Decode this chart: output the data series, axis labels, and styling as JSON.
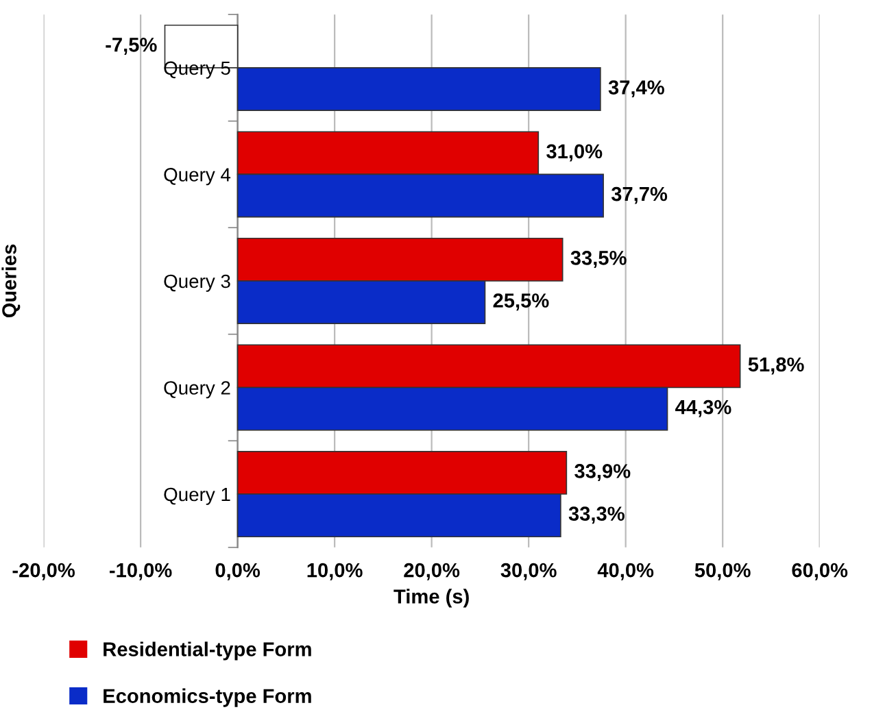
{
  "chart_data": {
    "type": "bar",
    "orientation": "horizontal",
    "xlabel": "Time (s)",
    "ylabel": "Queries",
    "categories": [
      "Query 5",
      "Query 4",
      "Query 3",
      "Query 2",
      "Query 1"
    ],
    "series": [
      {
        "name": "Residential-type Form",
        "color": "#e00000",
        "colors": [
          "#ffffff",
          "#e00000",
          "#e00000",
          "#e00000",
          "#e00000"
        ],
        "values": [
          -7.5,
          31.0,
          33.5,
          51.8,
          33.9
        ],
        "value_labels": [
          "-7,5%",
          "31,0%",
          "33,5%",
          "51,8%",
          "33,9%"
        ]
      },
      {
        "name": "Economics-type Form",
        "color": "#0a2cc8",
        "values": [
          37.4,
          37.7,
          25.5,
          44.3,
          33.3
        ],
        "value_labels": [
          "37,4%",
          "37,7%",
          "25,5%",
          "44,3%",
          "33,3%"
        ]
      }
    ],
    "xlim": [
      -20,
      60
    ],
    "xticks": [
      {
        "value": -20,
        "label": "-20,0%"
      },
      {
        "value": -10,
        "label": "-10,0%"
      },
      {
        "value": 0,
        "label": "0,0%"
      },
      {
        "value": 10,
        "label": "10,0%"
      },
      {
        "value": 20,
        "label": "20,0%"
      },
      {
        "value": 30,
        "label": "30,0%"
      },
      {
        "value": 40,
        "label": "40,0%"
      },
      {
        "value": 50,
        "label": "50,0%"
      },
      {
        "value": 60,
        "label": "60,0%"
      }
    ],
    "grid": "x",
    "legend": "bottom left"
  }
}
